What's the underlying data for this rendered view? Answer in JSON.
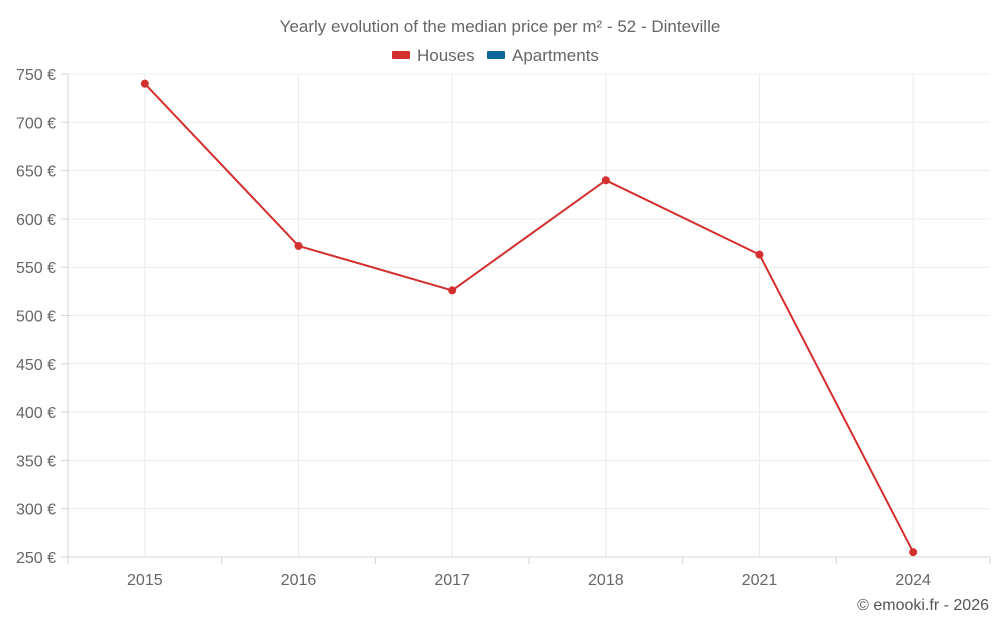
{
  "chart_data": {
    "type": "line",
    "title": "Yearly evolution of the median price per m² - 52 - Dinteville",
    "categories": [
      "2015",
      "2016",
      "2017",
      "2018",
      "2021",
      "2024"
    ],
    "series": [
      {
        "name": "Houses",
        "color": "#d32f2f",
        "values": [
          740,
          572,
          526,
          640,
          563,
          255
        ]
      },
      {
        "name": "Apartments",
        "color": "#0d6699",
        "values": [
          null,
          null,
          null,
          null,
          null,
          null
        ]
      }
    ],
    "ylim": [
      250,
      750
    ],
    "yticks": [
      250,
      300,
      350,
      400,
      450,
      500,
      550,
      600,
      650,
      700,
      750
    ],
    "ytick_labels": [
      "250 €",
      "300 €",
      "350 €",
      "400 €",
      "450 €",
      "500 €",
      "550 €",
      "600 €",
      "650 €",
      "700 €",
      "750 €"
    ],
    "xlabel": "",
    "ylabel": "",
    "grid": true,
    "legend_position": "top-center",
    "credit": "© emooki.fr - 2026"
  }
}
